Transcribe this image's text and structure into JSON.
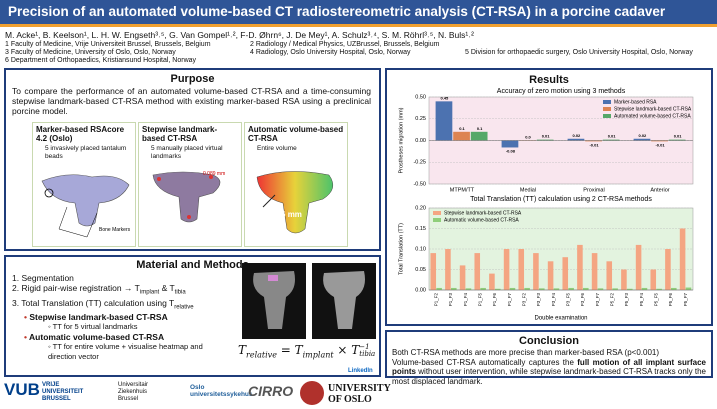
{
  "header": {
    "title": "Precision of an automated volume-based CT radiostereometric analysis (CT-RSA) in a porcine cadaver"
  },
  "authors": {
    "names": "M. Acke¹, B. Keelson¹, L. H. W. Engseth³˒⁵, G. Van Gompel¹˒², F-D. Øhrn⁶, J. De Mey¹, A. Schulz³˒⁴, S. M. Röhrl³˒⁵, N. Buls¹˒²",
    "affiliations": [
      "1 Faculty of Medicine, Vrije Universiteit Brussel, Brussels, Belgium",
      "2 Radiology / Medical Physics, UZBrussel, Brussels, Belgium",
      "3 Faculty of Medicine, University of Oslo, Oslo, Norway",
      "4 Radiology, Oslo University Hospital, Oslo, Norway",
      "5 Division for orthopaedic surgery, Oslo University Hospital, Oslo, Norway",
      "6 Department of Orthopaedics, Kristiansund Hospital, Norway"
    ]
  },
  "purpose": {
    "heading": "Purpose",
    "text": "To compare the performance of an automated volume-based CT-RSA and a time-consuming stepwise landmark-based CT-RSA method with existing marker-based RSA using a preclinical porcine model.",
    "panels": [
      {
        "title": "Marker-based RSAcore 4.2 (Oslo)",
        "bullet": "5 invasively placed tantalum beads",
        "annotation": "Bone Markers"
      },
      {
        "title": "Stepwise landmark-based CT-RSA",
        "bullet": "5 manually placed virtual landmarks",
        "annotation": "0.089 mm"
      },
      {
        "title": "Automatic volume-based CT-RSA",
        "bullet": "Entire volume",
        "annotation": "0.0936 mm"
      }
    ]
  },
  "methods": {
    "heading": "Material and Methods",
    "step1": "1.  Segmentation",
    "step2": {
      "text": "2.  Rigid pair-wise registration → T",
      "sub1": "implant",
      "mid": " & T",
      "sub2": "tibia"
    },
    "step3": {
      "text": "3.  Total Translation (TT) calculation using T",
      "sub": "relative"
    },
    "method_a": {
      "title": "Stepwise landmark-based CT-RSA",
      "detail": "TT for 5 virtual landmarks"
    },
    "method_b": {
      "title": "Automatic volume-based CT-RSA",
      "detail": "TT for entire volume + visualise heatmap and direction vector"
    },
    "formula": {
      "lhs": "T",
      "lhs_sub": "relative",
      "eq": " = T",
      "sub1": "implant",
      "times": " × T",
      "sup": "−1",
      "sub2": "tibia"
    }
  },
  "results": {
    "heading": "Results"
  },
  "chart_data": [
    {
      "type": "bar",
      "title": "Accuracy of zero motion using 3 methods",
      "categories": [
        "MTPM/TT",
        "Medial",
        "Proximal",
        "Anterior"
      ],
      "series": [
        {
          "name": "Marker-based RSA",
          "color": "#4c72b0",
          "values": [
            0.45,
            -0.08,
            0.02,
            0.02
          ],
          "value_labels": [
            "0.45",
            "-0.08",
            "0.02",
            "0.02"
          ]
        },
        {
          "name": "Stepwise landmark-based CT-RSA",
          "color": "#dd8452",
          "values": [
            0.1,
            0,
            -0.01,
            -0.01
          ],
          "value_labels": [
            "0.1",
            "0.0",
            "-0.01",
            "-0.01"
          ]
        },
        {
          "name": "Automated volume-based CT-RSA",
          "color": "#55a868",
          "values": [
            0.1,
            0.01,
            0.01,
            0.01
          ],
          "value_labels": [
            "0.1",
            "0.01",
            "0.01",
            "0.01"
          ]
        }
      ],
      "ylabel": "Prostheses migration (mm)",
      "ylim": [
        -0.5,
        0.5
      ],
      "yticks": [
        {
          "value": -0.5,
          "label": "-0.50"
        },
        {
          "value": -0.25,
          "label": "-0.25"
        },
        {
          "value": 0,
          "label": "0.00"
        },
        {
          "value": 0.25,
          "label": "0.25"
        },
        {
          "value": 0.5,
          "label": "0.50"
        }
      ],
      "grid": true,
      "legend": "upper right",
      "background": "#f9e6ee"
    },
    {
      "type": "bar",
      "title": "Total Translation (TT) calculation using 2 CT-RSA methods",
      "categories": [
        "P1_F2",
        "P1_F3",
        "P1_F4",
        "P1_F5",
        "P1_F6",
        "P1_F7",
        "P3_F2",
        "P3_F3",
        "P3_F4",
        "P3_F5",
        "P3_F6",
        "P3_F7",
        "P5_F2",
        "P5_F3",
        "P5_F4",
        "P5_F5",
        "P5_F6",
        "P5_F7"
      ],
      "series": [
        {
          "name": "Stepwise landmark-based CT-RSA",
          "color": "#f4a582",
          "values": [
            0.09,
            0.1,
            0.06,
            0.09,
            0.04,
            0.1,
            0.1,
            0.09,
            0.07,
            0.08,
            0.11,
            0.09,
            0.07,
            0.05,
            0.11,
            0.05,
            0.1,
            0.15
          ]
        },
        {
          "name": "Automatic volume-based CT-RSA",
          "color": "#8fce7a",
          "values": [
            0.005,
            0.005,
            0.004,
            0.005,
            0.003,
            0.005,
            0.005,
            0.004,
            0.004,
            0.005,
            0.005,
            0.004,
            0.004,
            0.003,
            0.005,
            0.003,
            0.005,
            0.006
          ]
        }
      ],
      "xlabel": "Double examination",
      "ylabel": "Total Translation (TT)",
      "ylim": [
        0,
        0.2
      ],
      "yticks": [
        {
          "value": 0,
          "label": "0.00"
        },
        {
          "value": 0.05,
          "label": "0.05"
        },
        {
          "value": 0.1,
          "label": "0.10"
        },
        {
          "value": 0.15,
          "label": "0.15"
        },
        {
          "value": 0.2,
          "label": "0.20"
        }
      ],
      "grid": true,
      "legend": "upper left",
      "background": "#e3f3df"
    }
  ],
  "conclusion": {
    "heading": "Conclusion",
    "line1": "Both CT-RSA methods are more precise than marker-based RSA (p<0.001)",
    "line2a": "Volume-based CT-RSA automatically captures the ",
    "line2b": "full motion of all implant surface points",
    "line2c": " without user intervention, while stepwise landmark-based CT-RSA tracks only the most displaced landmark."
  },
  "footer": {
    "logos": [
      "VUB",
      "VRIJE UNIVERSITEIT BRUSSEL",
      "Universitair Ziekenhuis Brussel",
      "Oslo universitetssykehus",
      "CIRRO",
      "UNIVERSITY OF OSLO",
      "LinkedIn"
    ]
  }
}
